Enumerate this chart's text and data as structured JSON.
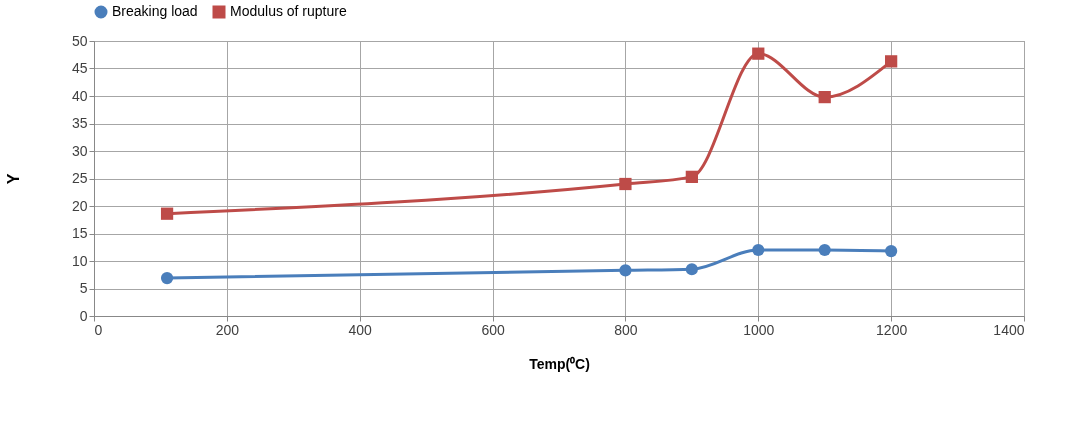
{
  "chart_data": {
    "type": "line",
    "xlabel": "Temp(⁰C)",
    "ylabel": "Y",
    "x": [
      110,
      800,
      900,
      1000,
      1100,
      1200
    ],
    "series": [
      {
        "name": "Breaking load",
        "color": "#4a7ebb",
        "marker": "circle",
        "values": [
          6.9,
          8.3,
          8.5,
          12.0,
          12.0,
          11.8
        ]
      },
      {
        "name": "Modulus of rupture",
        "color": "#be4b48",
        "marker": "square",
        "values": [
          18.6,
          24.0,
          25.3,
          47.7,
          39.8,
          46.3
        ]
      }
    ],
    "xlim": [
      0,
      1400
    ],
    "xticks": [
      0,
      200,
      400,
      600,
      800,
      1000,
      1200,
      1400
    ],
    "ylim": [
      0,
      50
    ],
    "yticks": [
      0,
      5,
      10,
      15,
      20,
      25,
      30,
      35,
      40,
      45,
      50
    ],
    "grid": true,
    "legend": "top"
  }
}
